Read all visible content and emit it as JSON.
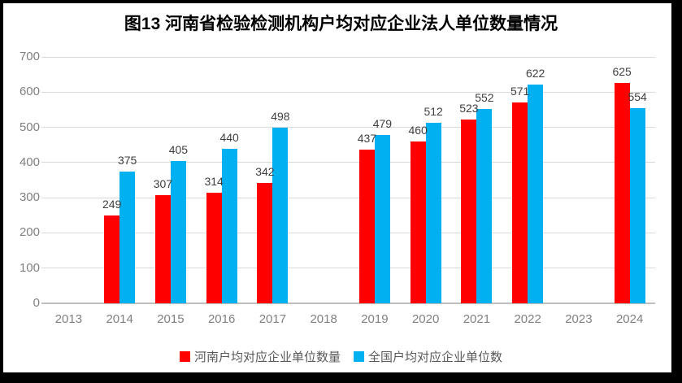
{
  "title": "图13  河南省检验检测机构户均对应企业法人单位数量情况",
  "colors": {
    "henan_series": "#ff0000",
    "national_series": "#00b0f0",
    "gridline": "#d9d9d9",
    "axis_line": "#bfbfbf",
    "axis_text": "#808080",
    "data_label_text": "#404040",
    "legend_text": "#595959",
    "frame": "#000000",
    "panel": "#ffffff"
  },
  "chart_data": {
    "type": "bar",
    "title": "图13 河南省检验检测机构户均对应企业法人单位数量情况",
    "categories": [
      "2013",
      "2014",
      "2015",
      "2016",
      "2017",
      "2018",
      "2019",
      "2020",
      "2021",
      "2022",
      "2023",
      "2024"
    ],
    "series": [
      {
        "key": "henan",
        "name": "河南户均对应企业单位数量",
        "color": "#ff0000",
        "values": [
          null,
          249,
          307,
          314,
          342,
          null,
          437,
          460,
          523,
          571,
          null,
          625
        ]
      },
      {
        "key": "national",
        "name": "全国户均对应企业单位数",
        "color": "#00b0f0",
        "values": [
          null,
          375,
          405,
          440,
          498,
          null,
          479,
          512,
          552,
          622,
          null,
          554
        ]
      }
    ],
    "xlabel": "",
    "ylabel": "",
    "ylim": [
      0,
      700
    ],
    "ytick_step": 100,
    "yticks": [
      0,
      100,
      200,
      300,
      400,
      500,
      600,
      700
    ],
    "grid": true,
    "data_labels": "outside-end",
    "legend_position": "bottom"
  }
}
